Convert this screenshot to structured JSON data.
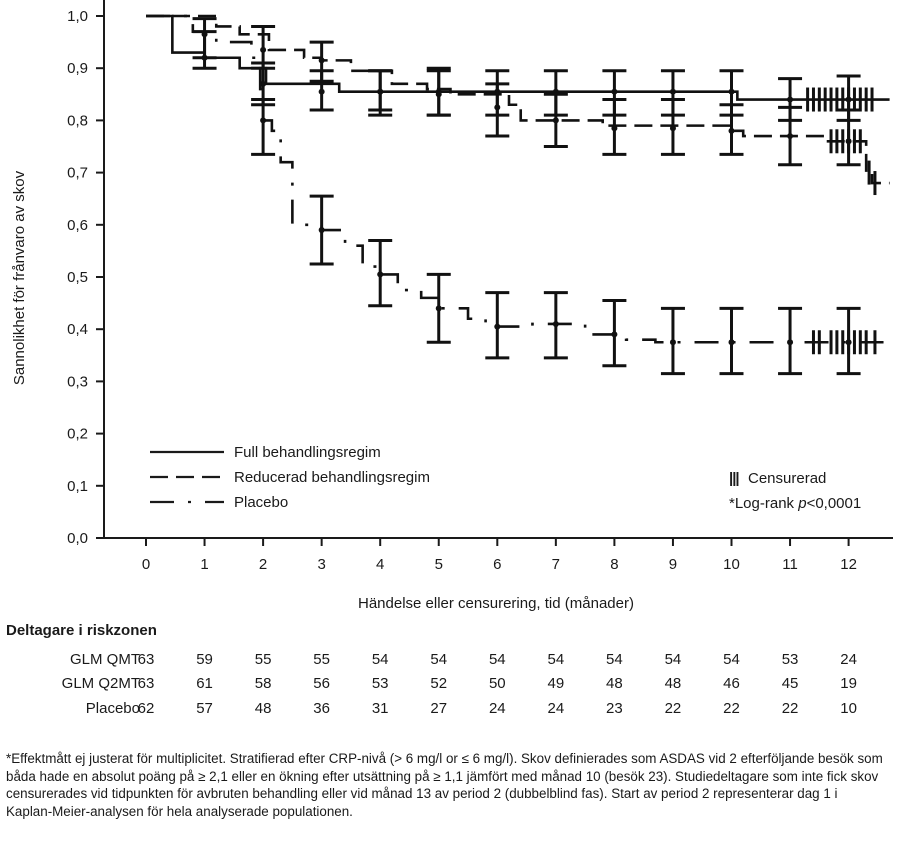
{
  "chart_data": {
    "type": "line",
    "subtype": "kaplan-meier",
    "title": "",
    "xlabel": "Händelse eller censurering, tid (månader)",
    "ylabel": "Sannolikhet för frånvaro av skov",
    "xlim": [
      -0.55,
      12.7
    ],
    "ylim": [
      0,
      1.0
    ],
    "x_ticks": [
      0,
      1,
      2,
      3,
      4,
      5,
      6,
      7,
      8,
      9,
      10,
      11,
      12
    ],
    "x_tick_labels": [
      "0",
      "1",
      "2",
      "3",
      "4",
      "5",
      "6",
      "7",
      "8",
      "9",
      "10",
      "11",
      "12"
    ],
    "y_ticks": [
      0,
      0.1,
      0.2,
      0.3,
      0.4,
      0.5,
      0.6,
      0.7,
      0.8,
      0.9,
      1.0
    ],
    "y_tick_labels": [
      "0,0",
      "0,1",
      "0,2",
      "0,3",
      "0,4",
      "0,5",
      "0,6",
      "0,7",
      "0,8",
      "0,9",
      "1,0"
    ],
    "grid": false,
    "legend_position": "bottom-left",
    "series": [
      {
        "name": "Full behandlingsregim",
        "style": "solid",
        "steps": [
          [
            0,
            1.0
          ],
          [
            0.45,
            0.93
          ],
          [
            1.0,
            0.92
          ],
          [
            1.6,
            0.9
          ],
          [
            2.05,
            0.87
          ],
          [
            3.3,
            0.855
          ],
          [
            10.1,
            0.84
          ],
          [
            12.7,
            0.84
          ]
        ],
        "ci": [
          [
            1,
            0.92,
            0.9,
            0.97
          ],
          [
            2,
            0.87,
            0.83,
            0.91
          ],
          [
            3,
            0.855,
            0.82,
            0.895
          ],
          [
            4,
            0.855,
            0.81,
            0.895
          ],
          [
            5,
            0.855,
            0.81,
            0.895
          ],
          [
            6,
            0.855,
            0.81,
            0.895
          ],
          [
            7,
            0.855,
            0.81,
            0.895
          ],
          [
            8,
            0.855,
            0.81,
            0.895
          ],
          [
            9,
            0.855,
            0.81,
            0.895
          ],
          [
            10,
            0.855,
            0.81,
            0.895
          ],
          [
            11,
            0.84,
            0.8,
            0.88
          ],
          [
            12,
            0.84,
            0.8,
            0.885
          ]
        ],
        "censor_x": [
          11.3,
          11.4,
          11.5,
          11.6,
          11.7,
          11.8,
          11.9,
          12.0,
          12.1,
          12.2,
          12.3,
          12.4
        ]
      },
      {
        "name": "Reducerad behandlingsregim",
        "style": "dashed",
        "steps": [
          [
            0,
            1.0
          ],
          [
            1.2,
            0.98
          ],
          [
            1.6,
            0.965
          ],
          [
            2.1,
            0.935
          ],
          [
            2.7,
            0.92
          ],
          [
            3.0,
            0.915
          ],
          [
            3.5,
            0.895
          ],
          [
            4.2,
            0.87
          ],
          [
            4.8,
            0.86
          ],
          [
            5.2,
            0.85
          ],
          [
            6.2,
            0.83
          ],
          [
            6.4,
            0.8
          ],
          [
            7.8,
            0.79
          ],
          [
            10.05,
            0.78
          ],
          [
            10.2,
            0.77
          ],
          [
            11.6,
            0.76
          ],
          [
            12.3,
            0.7
          ],
          [
            12.4,
            0.68
          ],
          [
            12.7,
            0.68
          ]
        ],
        "ci": [
          [
            1,
            0.965,
            0.92,
            0.995
          ],
          [
            2,
            0.935,
            0.9,
            0.98
          ],
          [
            3,
            0.915,
            0.875,
            0.95
          ],
          [
            4,
            0.855,
            0.82,
            0.895
          ],
          [
            5,
            0.85,
            0.81,
            0.9
          ],
          [
            6,
            0.825,
            0.77,
            0.87
          ],
          [
            7,
            0.8,
            0.75,
            0.85
          ],
          [
            8,
            0.785,
            0.735,
            0.84
          ],
          [
            9,
            0.785,
            0.735,
            0.84
          ],
          [
            10,
            0.78,
            0.735,
            0.83
          ],
          [
            11,
            0.77,
            0.715,
            0.825
          ],
          [
            12,
            0.76,
            0.715,
            0.82
          ]
        ],
        "censor_x": [
          11.7,
          11.8,
          11.9,
          12.0,
          12.1,
          12.2,
          12.35,
          12.45
        ]
      },
      {
        "name": "Placebo",
        "style": "dash-dot",
        "steps": [
          [
            0,
            1.0
          ],
          [
            0.8,
            0.97
          ],
          [
            1.2,
            0.95
          ],
          [
            1.8,
            0.92
          ],
          [
            1.95,
            0.86
          ],
          [
            2.0,
            0.8
          ],
          [
            2.15,
            0.78
          ],
          [
            2.3,
            0.72
          ],
          [
            2.5,
            0.6
          ],
          [
            3.0,
            0.59
          ],
          [
            3.4,
            0.56
          ],
          [
            3.7,
            0.52
          ],
          [
            4.0,
            0.505
          ],
          [
            4.3,
            0.475
          ],
          [
            4.7,
            0.46
          ],
          [
            5.0,
            0.44
          ],
          [
            5.5,
            0.42
          ],
          [
            5.8,
            0.405
          ],
          [
            6.6,
            0.41
          ],
          [
            7.5,
            0.39
          ],
          [
            8.2,
            0.38
          ],
          [
            8.7,
            0.375
          ],
          [
            12.7,
            0.375
          ]
        ],
        "ci": [
          [
            2,
            0.8,
            0.735,
            0.84
          ],
          [
            3,
            0.59,
            0.525,
            0.655
          ],
          [
            4,
            0.505,
            0.445,
            0.57
          ],
          [
            5,
            0.44,
            0.375,
            0.505
          ],
          [
            6,
            0.405,
            0.345,
            0.47
          ],
          [
            7,
            0.41,
            0.345,
            0.47
          ],
          [
            8,
            0.39,
            0.33,
            0.455
          ],
          [
            9,
            0.375,
            0.315,
            0.44
          ],
          [
            10,
            0.375,
            0.315,
            0.44
          ],
          [
            11,
            0.375,
            0.315,
            0.44
          ],
          [
            12,
            0.375,
            0.315,
            0.44
          ]
        ],
        "censor_x": [
          11.4,
          11.5,
          11.7,
          11.8,
          11.9,
          12.0,
          12.1,
          12.2,
          12.3,
          12.45
        ]
      }
    ],
    "annotations": [
      "||| Censurerad",
      "*Log-rank p<0,0001"
    ]
  },
  "legend": {
    "items": [
      {
        "label": "Full behandlingsregim",
        "style": "solid"
      },
      {
        "label": "Reducerad behandlingsregim",
        "style": "dashed"
      },
      {
        "label": "Placebo",
        "style": "dash-dot"
      }
    ],
    "censored_symbol": "|||",
    "censored_label": "Censurerad",
    "logrank_prefix": "*Log-rank ",
    "logrank_p": "p",
    "logrank_value": "<0,0001"
  },
  "risk_table": {
    "title": "Deltagare i riskzonen",
    "months": [
      0,
      1,
      2,
      3,
      4,
      5,
      6,
      7,
      8,
      9,
      10,
      11,
      12
    ],
    "rows": [
      {
        "label": "GLM QMT",
        "values": [
          "63",
          "59",
          "55",
          "55",
          "54",
          "54",
          "54",
          "54",
          "54",
          "54",
          "54",
          "53",
          "24"
        ]
      },
      {
        "label": "GLM Q2MT",
        "values": [
          "63",
          "61",
          "58",
          "56",
          "53",
          "52",
          "50",
          "49",
          "48",
          "48",
          "46",
          "45",
          "19"
        ]
      },
      {
        "label": "Placebo",
        "values": [
          "62",
          "57",
          "48",
          "36",
          "31",
          "27",
          "24",
          "24",
          "23",
          "22",
          "22",
          "22",
          "10"
        ]
      }
    ]
  },
  "footnote": "*Effektmått ej justerat för multiplicitet. Stratifierad efter CRP-nivå (> 6 mg/l or ≤ 6 mg/l). Skov definierades som ASDAS vid 2 efterföljande besök som båda hade en absolut poäng på ≥ 2,1 eller en ökning efter utsättning på ≥ 1,1 jämfört med månad 10 (besök 23). Studiedeltagare som inte fick skov censurerades vid tidpunkten för avbruten behandling eller vid månad 13 av period 2 (dubbelblind fas). Start av period 2 representerar dag 1 i Kaplan-Meier-analysen för hela analyserade populationen."
}
